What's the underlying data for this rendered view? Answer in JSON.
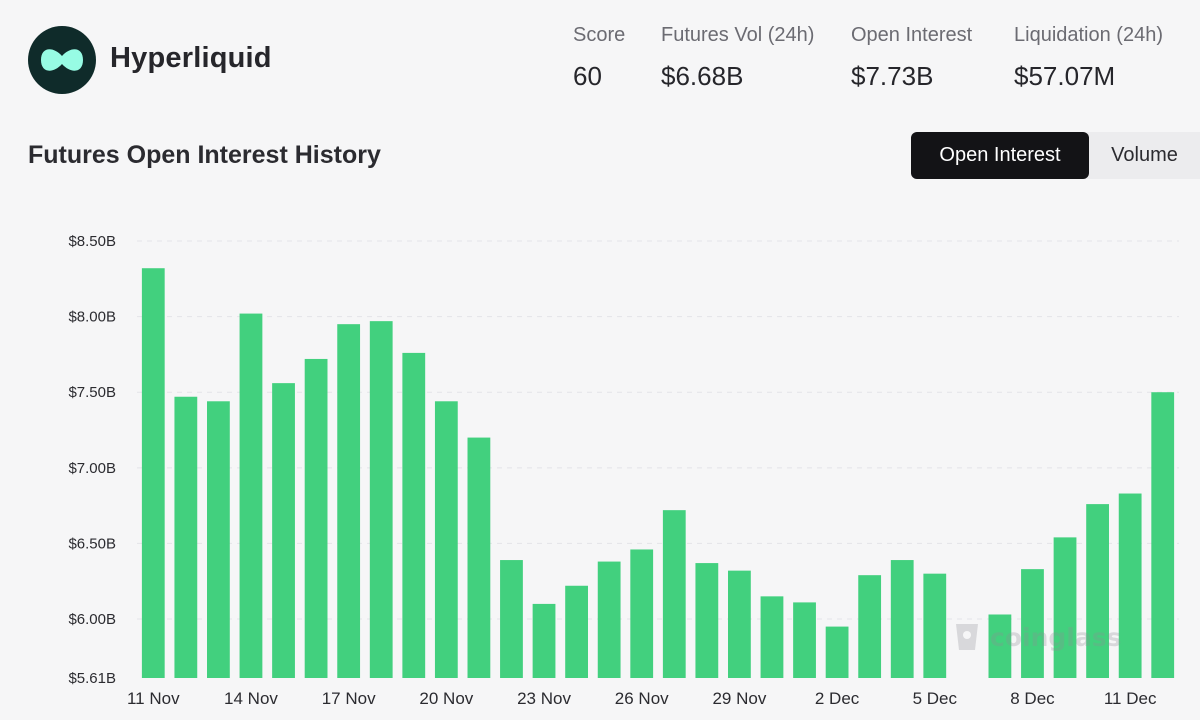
{
  "brand": {
    "name": "Hyperliquid",
    "logo_color": "#97fce4",
    "logo_bg": "#0f2b2a"
  },
  "stats": [
    {
      "label": "Score",
      "value": "60"
    },
    {
      "label": "Futures Vol (24h)",
      "value": "$6.68B"
    },
    {
      "label": "Open Interest",
      "value": "$7.73B"
    },
    {
      "label": "Liquidation (24h)",
      "value": "$57.07M"
    }
  ],
  "section_title": "Futures Open Interest History",
  "toggles": {
    "active": "Open Interest",
    "inactive": "Volume"
  },
  "watermark": "coinglass",
  "chart_data": {
    "type": "bar",
    "title": "",
    "xlabel": "",
    "ylabel": "",
    "ylim": [
      5.61,
      8.5
    ],
    "y_unit": "$B",
    "y_ticks": [
      {
        "value": 8.5,
        "label": "$8.50B"
      },
      {
        "value": 8.0,
        "label": "$8.00B"
      },
      {
        "value": 7.5,
        "label": "$7.50B"
      },
      {
        "value": 7.0,
        "label": "$7.00B"
      },
      {
        "value": 6.5,
        "label": "$6.50B"
      },
      {
        "value": 6.0,
        "label": "$6.00B"
      },
      {
        "value": 5.61,
        "label": "$5.61B"
      }
    ],
    "x_tick_labels": [
      "11 Nov",
      "14 Nov",
      "17 Nov",
      "20 Nov",
      "23 Nov",
      "26 Nov",
      "29 Nov",
      "2 Dec",
      "5 Dec",
      "8 Dec",
      "11 Dec"
    ],
    "x_tick_every": 3,
    "categories": [
      "11 Nov",
      "12 Nov",
      "13 Nov",
      "14 Nov",
      "15 Nov",
      "16 Nov",
      "17 Nov",
      "18 Nov",
      "19 Nov",
      "20 Nov",
      "21 Nov",
      "22 Nov",
      "23 Nov",
      "24 Nov",
      "25 Nov",
      "26 Nov",
      "27 Nov",
      "28 Nov",
      "29 Nov",
      "30 Nov",
      "1 Dec",
      "2 Dec",
      "3 Dec",
      "4 Dec",
      "5 Dec",
      "6 Dec",
      "7 Dec",
      "8 Dec",
      "9 Dec",
      "10 Dec",
      "11 Dec",
      "12 Dec"
    ],
    "values": [
      8.32,
      7.47,
      7.44,
      8.02,
      7.56,
      7.72,
      7.95,
      7.97,
      7.76,
      7.44,
      7.2,
      6.39,
      6.1,
      6.22,
      6.38,
      6.46,
      6.72,
      6.37,
      6.32,
      6.15,
      6.11,
      5.95,
      6.29,
      6.39,
      6.3,
      5.61,
      6.03,
      6.33,
      6.54,
      6.76,
      6.83,
      7.5
    ],
    "bar_color": "#42d07e",
    "grid": true,
    "legend": "none"
  }
}
